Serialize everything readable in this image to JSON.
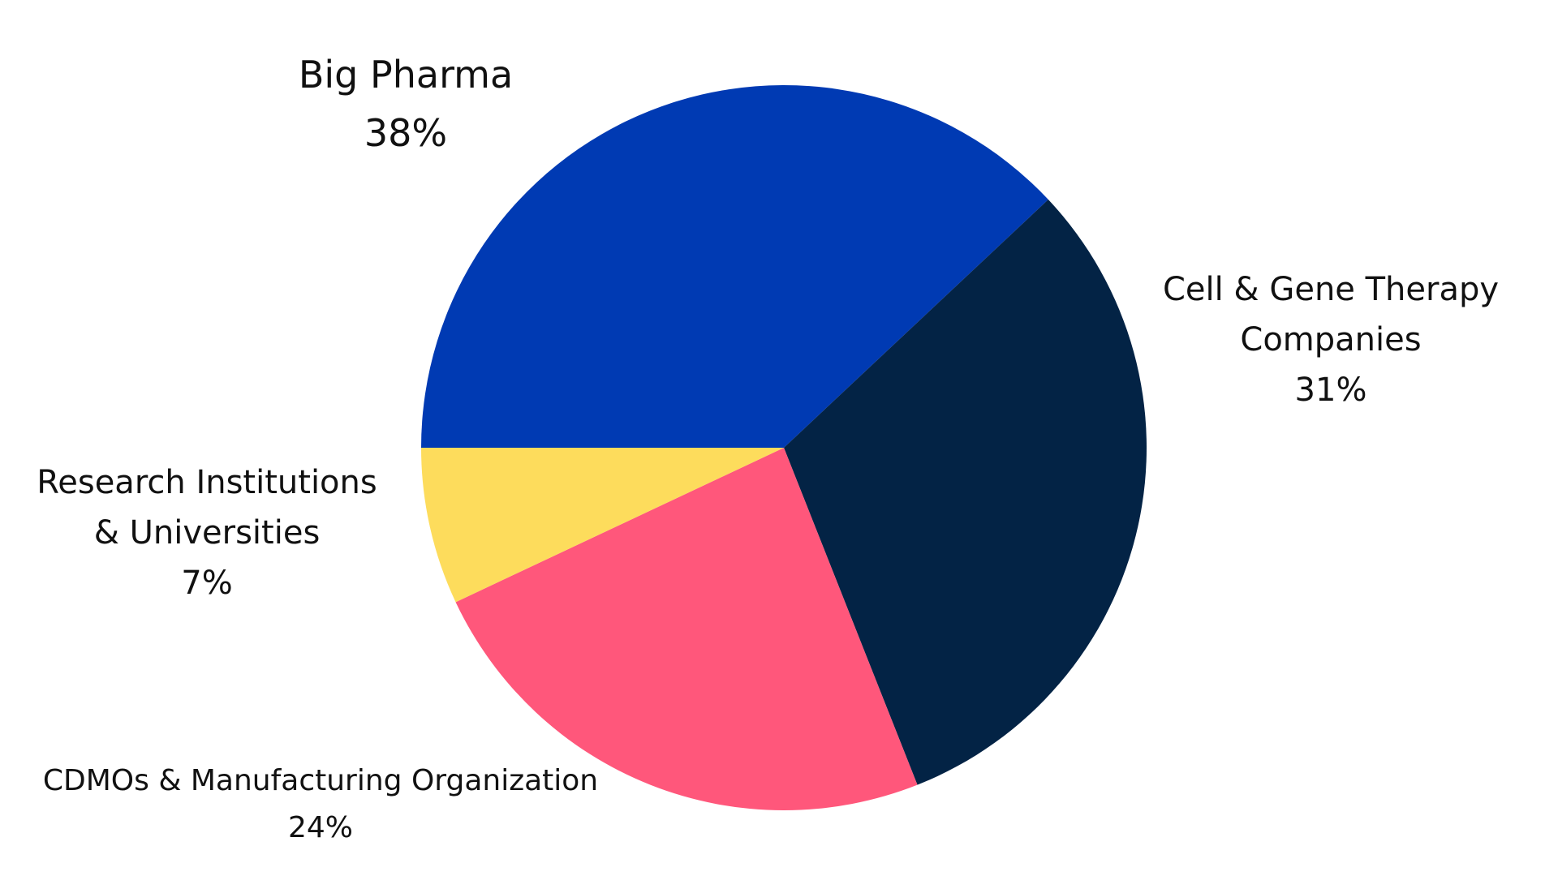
{
  "chart_data": {
    "type": "pie",
    "categories": [
      "Big Pharma",
      "Cell & Gene Therapy Companies",
      "CDMOs & Manufacturing Organization",
      "Research Institutions & Universities"
    ],
    "values": [
      38,
      31,
      24,
      7
    ],
    "slices": [
      {
        "label_lines": [
          "Big Pharma"
        ],
        "value_label": "38%",
        "value": 38,
        "color": "#003AB3"
      },
      {
        "label_lines": [
          "Cell & Gene Therapy",
          "Companies"
        ],
        "value_label": "31%",
        "value": 31,
        "color": "#032345"
      },
      {
        "label_lines": [
          "CDMOs & Manufacturing Organization"
        ],
        "value_label": "24%",
        "value": 24,
        "color": "#FF577B"
      },
      {
        "label_lines": [
          "Research Institutions",
          "& Universities"
        ],
        "value_label": "7%",
        "value": 7,
        "color": "#FDDC5C"
      }
    ],
    "legend": "none",
    "grid": false
  }
}
